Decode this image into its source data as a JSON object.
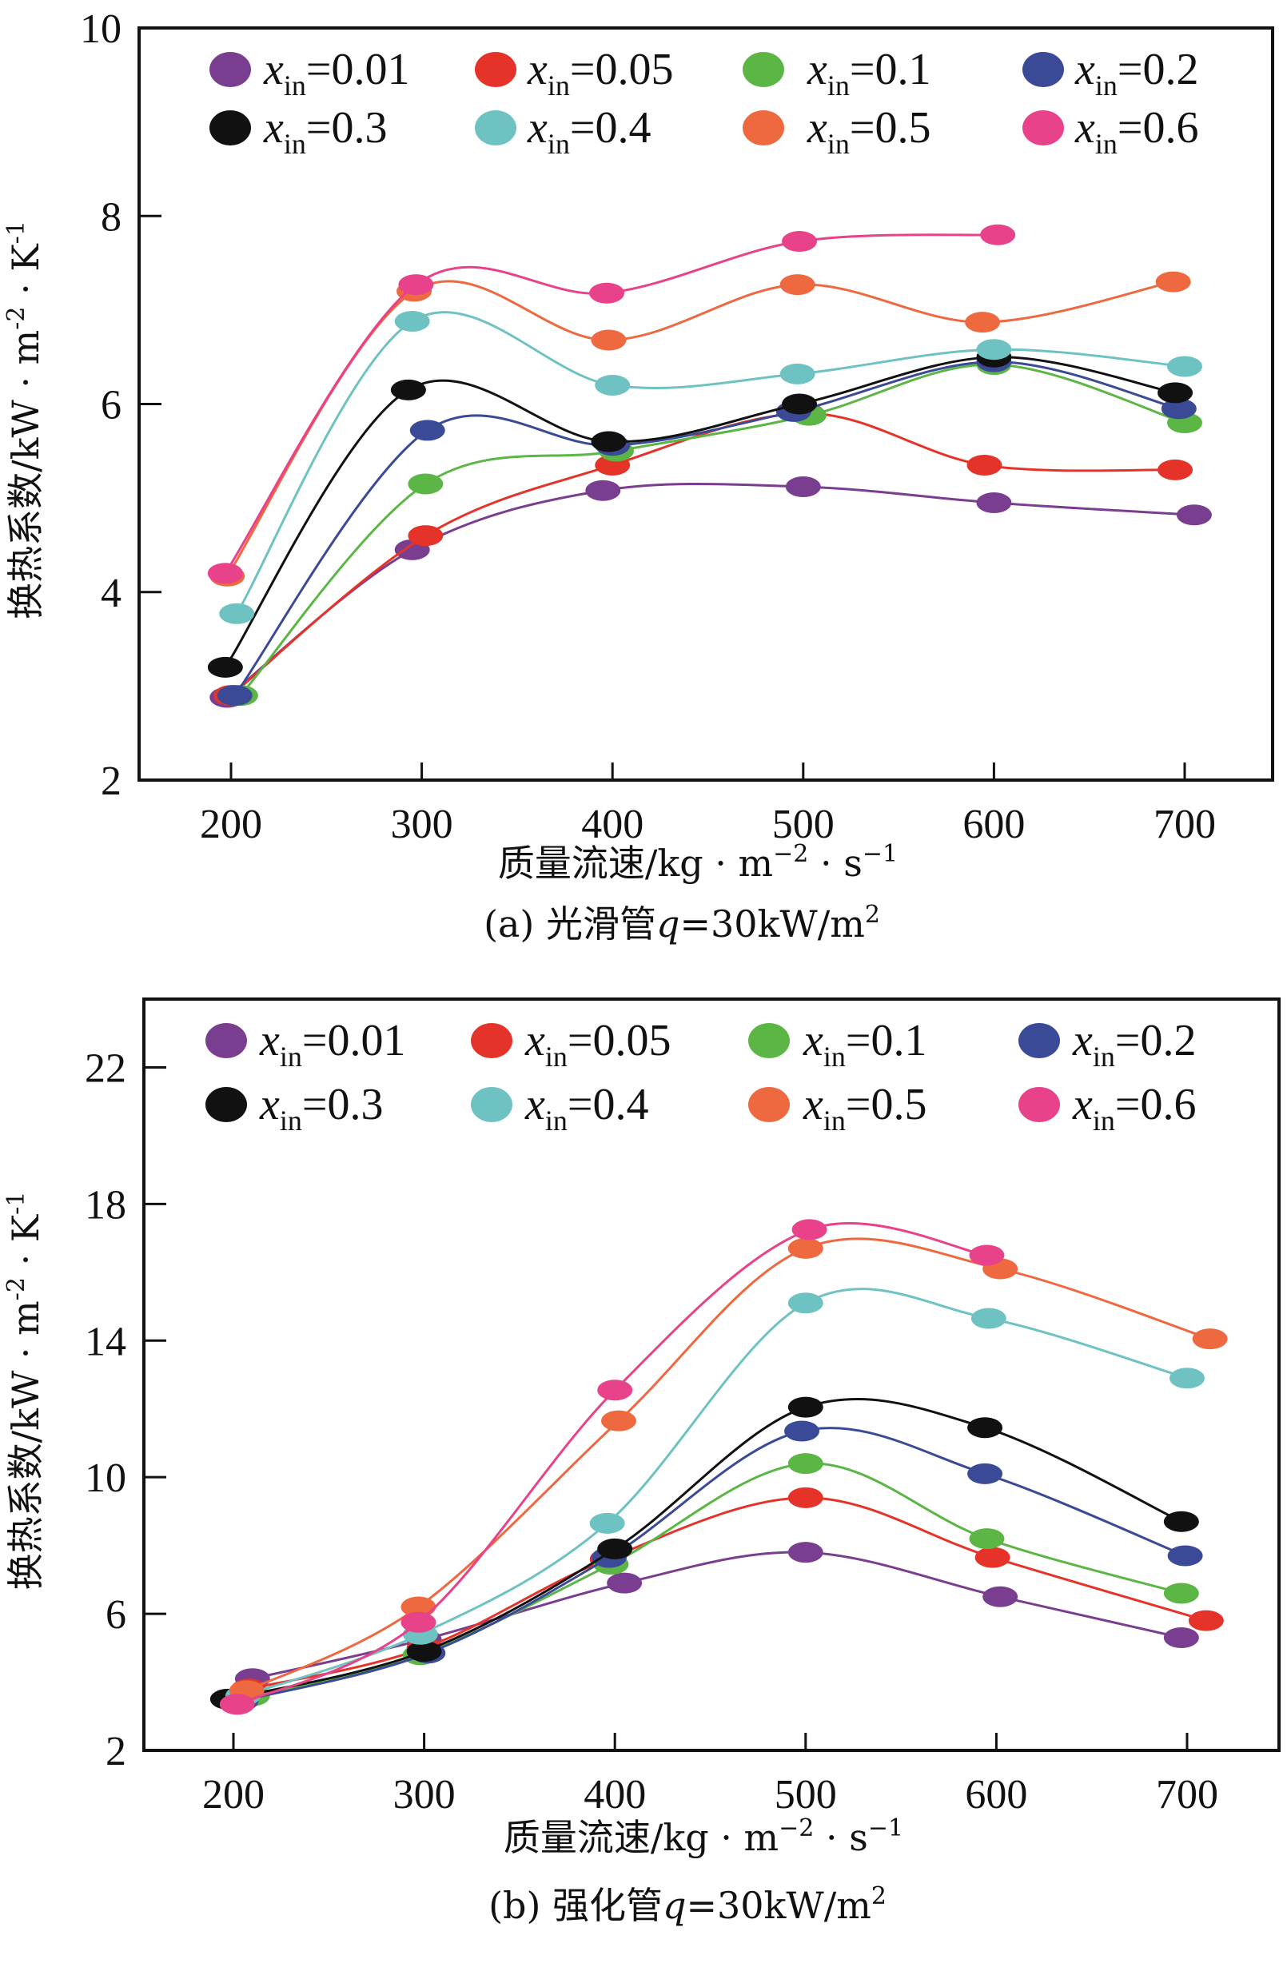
{
  "chart_data": [
    {
      "id": "a",
      "type": "line",
      "caption": "(a) 光滑管q=30kW/m²",
      "caption_parts": {
        "prefix": "(a) 光滑管",
        "var": "q",
        "suffix": "=30kW/m",
        "sup": "2"
      },
      "xlabel": "质量流速/kg · m⁻² · s⁻¹",
      "xlabel_parts": {
        "main": "质量流速/kg · m",
        "sup1": "−2",
        "mid": " · s",
        "sup2": "−1"
      },
      "ylabel": "换热系数/kW · m⁻² · K⁻¹",
      "ylabel_parts": {
        "main": "换热系数/kW · m",
        "sup1": "-2",
        "mid": " · K",
        "sup2": "-1"
      },
      "xlim": [
        150,
        750
      ],
      "ylim": [
        2,
        10
      ],
      "xticks": [
        200,
        300,
        400,
        500,
        600,
        700
      ],
      "yticks": [
        2,
        4,
        6,
        8,
        10
      ],
      "ytick_marks": [
        4,
        6,
        8
      ],
      "legend_position": "top",
      "grid": false,
      "series": [
        {
          "name": "x_in=0.01",
          "label_var": "x",
          "label_sub": "in",
          "label_val": "=0.01",
          "color": "#7a3e91",
          "x": [
            198,
            295,
            395,
            500,
            600,
            705
          ],
          "y": [
            2.88,
            4.45,
            5.08,
            5.12,
            4.95,
            4.82
          ]
        },
        {
          "name": "x_in=0.05",
          "label_var": "x",
          "label_sub": "in",
          "label_val": "=0.05",
          "color": "#e5332a",
          "x": [
            200,
            302,
            400,
            502,
            595,
            695
          ],
          "y": [
            2.9,
            4.6,
            5.35,
            5.9,
            5.35,
            5.3
          ]
        },
        {
          "name": "x_in=0.1",
          "label_var": "x",
          "label_sub": "in",
          "label_val": "=0.1",
          "color": "#5cb646",
          "x": [
            205,
            302,
            402,
            503,
            600,
            700
          ],
          "y": [
            2.9,
            5.15,
            5.5,
            5.88,
            6.42,
            5.8
          ]
        },
        {
          "name": "x_in=0.2",
          "label_var": "x",
          "label_sub": "in",
          "label_val": "=0.2",
          "color": "#3a4a96",
          "x": [
            202,
            303,
            400,
            495,
            600,
            697
          ],
          "y": [
            2.9,
            5.72,
            5.56,
            5.92,
            6.45,
            5.95
          ]
        },
        {
          "name": "x_in=0.3",
          "label_var": "x",
          "label_sub": "in",
          "label_val": "=0.3",
          "color": "#111111",
          "x": [
            197,
            293,
            398,
            498,
            600,
            695
          ],
          "y": [
            3.2,
            6.15,
            5.6,
            6.0,
            6.5,
            6.12
          ]
        },
        {
          "name": "x_in=0.4",
          "label_var": "x",
          "label_sub": "in",
          "label_val": "=0.4",
          "color": "#6fc2c2",
          "x": [
            203,
            295,
            400,
            497,
            600,
            700
          ],
          "y": [
            3.77,
            6.88,
            6.2,
            6.32,
            6.58,
            6.4
          ]
        },
        {
          "name": "x_in=0.5",
          "label_var": "x",
          "label_sub": "in",
          "label_val": "=0.5",
          "color": "#ee6840",
          "x": [
            198,
            296,
            398,
            497,
            594,
            694
          ],
          "y": [
            4.17,
            7.2,
            6.68,
            7.27,
            6.87,
            7.3
          ]
        },
        {
          "name": "x_in=0.6",
          "label_var": "x",
          "label_sub": "in",
          "label_val": "=0.6",
          "color": "#e8428a",
          "x": [
            197,
            297,
            397,
            498,
            602
          ],
          "y": [
            4.2,
            7.27,
            7.18,
            7.73,
            7.8
          ]
        }
      ]
    },
    {
      "id": "b",
      "type": "line",
      "caption": "(b) 强化管q=30kW/m²",
      "caption_parts": {
        "prefix": "(b) 强化管",
        "var": "q",
        "suffix": "=30kW/m",
        "sup": "2"
      },
      "xlabel": "质量流速/kg · m⁻² · s⁻¹",
      "xlabel_parts": {
        "main": "质量流速/kg · m",
        "sup1": "−2",
        "mid": " · s",
        "sup2": "−1"
      },
      "ylabel": "换热系数/kW · m⁻² · K⁻¹",
      "ylabel_parts": {
        "main": "换热系数/kW · m",
        "sup1": "-2",
        "mid": " · K",
        "sup2": "-1"
      },
      "xlim": [
        150,
        750
      ],
      "ylim": [
        2,
        24
      ],
      "xticks": [
        200,
        300,
        400,
        500,
        600,
        700
      ],
      "yticks": [
        2,
        6,
        10,
        14,
        18,
        22
      ],
      "ytick_marks": [
        6,
        10,
        14,
        18,
        22
      ],
      "legend_position": "top",
      "grid": false,
      "series": [
        {
          "name": "x_in=0.01",
          "label_var": "x",
          "label_sub": "in",
          "label_val": "=0.01",
          "color": "#7a3e91",
          "x": [
            210,
            300,
            405,
            500,
            602,
            697
          ],
          "y": [
            4.1,
            5.25,
            6.9,
            7.8,
            6.5,
            5.3
          ]
        },
        {
          "name": "x_in=0.05",
          "label_var": "x",
          "label_sub": "in",
          "label_val": "=0.05",
          "color": "#e5332a",
          "x": [
            208,
            300,
            396,
            500,
            598,
            710
          ],
          "y": [
            3.8,
            5.0,
            7.6,
            9.4,
            7.65,
            5.8
          ]
        },
        {
          "name": "x_in=0.1",
          "label_var": "x",
          "label_sub": "in",
          "label_val": "=0.1",
          "color": "#5cb646",
          "x": [
            210,
            298,
            398,
            500,
            595,
            697
          ],
          "y": [
            3.6,
            4.8,
            7.45,
            10.4,
            8.2,
            6.6
          ]
        },
        {
          "name": "x_in=0.2",
          "label_var": "x",
          "label_sub": "in",
          "label_val": "=0.2",
          "color": "#3a4a96",
          "x": [
            204,
            302,
            397,
            498,
            594,
            699
          ],
          "y": [
            3.45,
            4.85,
            7.65,
            11.35,
            10.1,
            7.7
          ]
        },
        {
          "name": "x_in=0.3",
          "label_var": "x",
          "label_sub": "in",
          "label_val": "=0.3",
          "color": "#111111",
          "x": [
            197,
            300,
            400,
            500,
            594,
            697
          ],
          "y": [
            3.5,
            4.9,
            7.9,
            12.05,
            11.45,
            8.7
          ]
        },
        {
          "name": "x_in=0.4",
          "label_var": "x",
          "label_sub": "in",
          "label_val": "=0.4",
          "color": "#6fc2c2",
          "x": [
            205,
            298,
            396,
            500,
            596,
            700
          ],
          "y": [
            3.6,
            5.4,
            8.65,
            15.1,
            14.65,
            12.9
          ]
        },
        {
          "name": "x_in=0.5",
          "label_var": "x",
          "label_sub": "in",
          "label_val": "=0.5",
          "color": "#ee6840",
          "x": [
            207,
            297,
            402,
            500,
            602,
            712
          ],
          "y": [
            3.75,
            6.2,
            11.65,
            16.7,
            16.1,
            14.05
          ]
        },
        {
          "name": "x_in=0.6",
          "label_var": "x",
          "label_sub": "in",
          "label_val": "=0.6",
          "color": "#e8428a",
          "x": [
            202,
            297,
            400,
            502,
            595
          ],
          "y": [
            3.35,
            5.75,
            12.55,
            17.25,
            16.5
          ]
        }
      ]
    }
  ]
}
